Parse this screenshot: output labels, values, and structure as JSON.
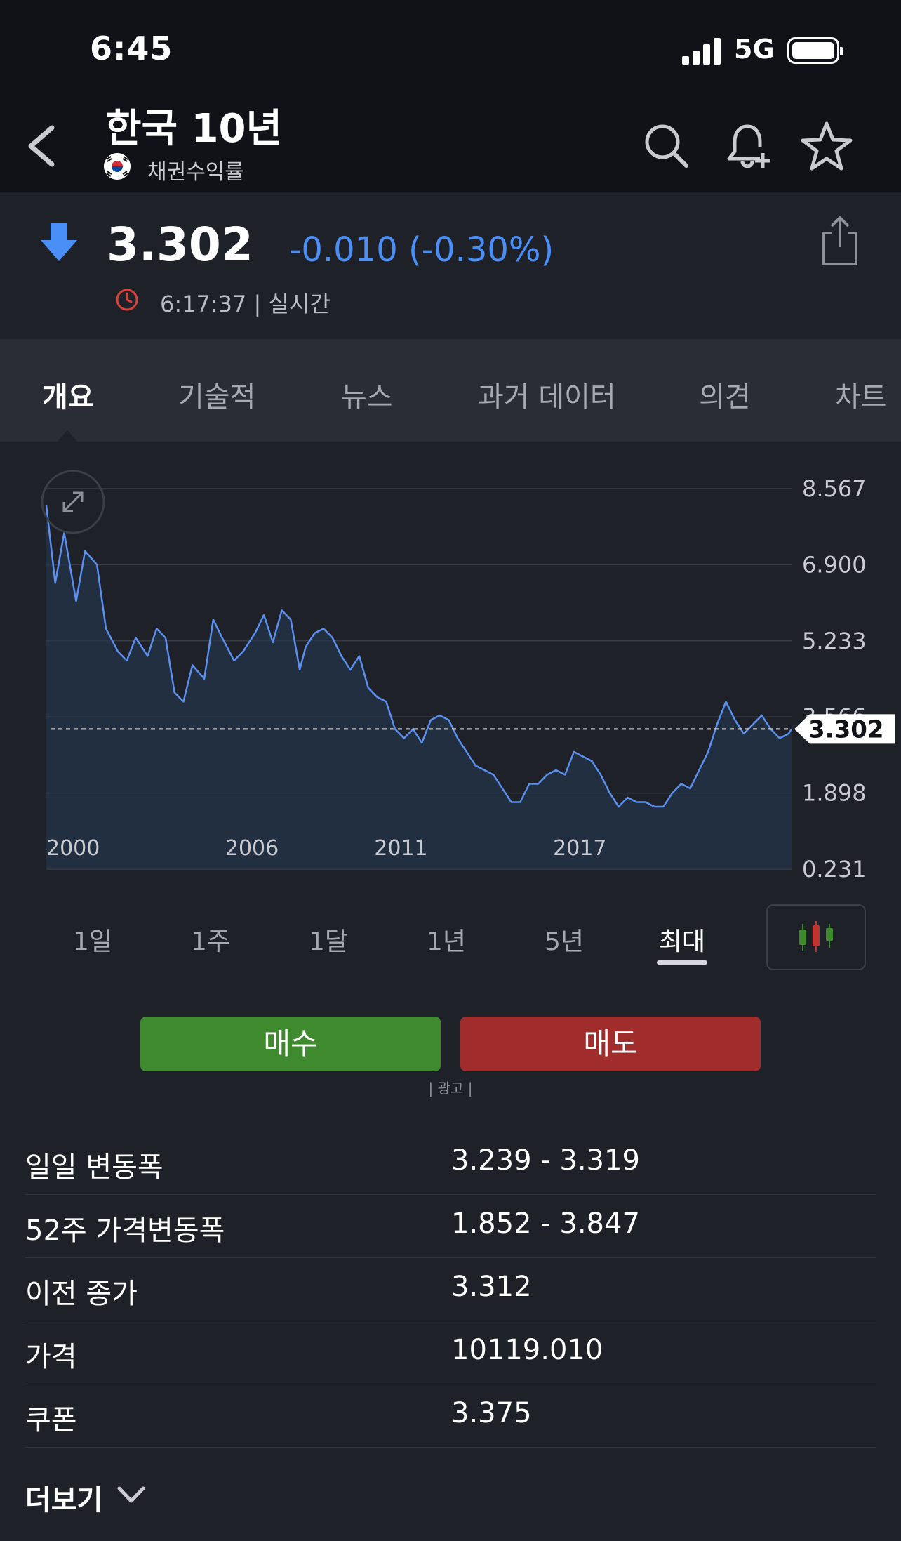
{
  "status_bar": {
    "time": "6:45",
    "network": "5G"
  },
  "header": {
    "title": "한국 10년",
    "subtitle": "채권수익률",
    "icons": [
      "back-icon",
      "search-icon",
      "bell-plus-icon",
      "star-icon"
    ]
  },
  "quote": {
    "price": "3.302",
    "change": "-0.010 (-0.30%)",
    "timestamp": "6:17:37 | 실시간",
    "direction": "down",
    "colors": {
      "down": "#4a8ef7",
      "line": "#5b8ff0",
      "clock": "#d9413a"
    }
  },
  "tabs": [
    {
      "label": "개요",
      "active": true
    },
    {
      "label": "기술적"
    },
    {
      "label": "뉴스"
    },
    {
      "label": "과거 데이터"
    },
    {
      "label": "의견"
    },
    {
      "label": "차트"
    }
  ],
  "chart_data": {
    "type": "area",
    "x_ticks": [
      "2000",
      "2006",
      "2011",
      "2017"
    ],
    "y_ticks": [
      "8.567",
      "6.900",
      "5.233",
      "3.566",
      "1.898",
      "0.231"
    ],
    "ylim": [
      0.231,
      8.567
    ],
    "current_value": "3.302",
    "grid": true,
    "series": [
      {
        "x": [
          2000.0,
          2000.3,
          2000.6,
          2001.0,
          2001.3,
          2001.7,
          2002.0,
          2002.4,
          2002.7,
          2003.0,
          2003.4,
          2003.7,
          2004.0,
          2004.3,
          2004.6,
          2004.9,
          2005.3,
          2005.6,
          2005.9,
          2006.3,
          2006.6,
          2007.0,
          2007.3,
          2007.6,
          2007.9,
          2008.2,
          2008.5,
          2008.7,
          2009.0,
          2009.3,
          2009.6,
          2009.9,
          2010.2,
          2010.5,
          2010.8,
          2011.1,
          2011.4,
          2011.7,
          2012.0,
          2012.3,
          2012.6,
          2012.9,
          2013.2,
          2013.5,
          2013.8,
          2014.1,
          2014.4,
          2014.7,
          2015.0,
          2015.3,
          2015.6,
          2015.9,
          2016.2,
          2016.5,
          2016.8,
          2017.1,
          2017.4,
          2017.7,
          2018.0,
          2018.3,
          2018.6,
          2018.9,
          2019.2,
          2019.5,
          2019.8,
          2020.1,
          2020.4,
          2020.7,
          2021.0,
          2021.3,
          2021.6,
          2021.9,
          2022.2,
          2022.5,
          2022.8,
          2023.1,
          2023.4,
          2023.7,
          2024.0,
          2024.3,
          2024.6,
          2024.9,
          2025.0
        ],
        "values": [
          8.2,
          6.5,
          7.6,
          6.1,
          7.2,
          6.9,
          5.5,
          5.0,
          4.8,
          5.3,
          4.9,
          5.5,
          5.3,
          4.1,
          3.9,
          4.7,
          4.4,
          5.7,
          5.3,
          4.8,
          5.0,
          5.4,
          5.8,
          5.2,
          5.9,
          5.7,
          4.6,
          5.1,
          5.4,
          5.5,
          5.3,
          4.9,
          4.6,
          4.9,
          4.2,
          4.0,
          3.9,
          3.3,
          3.1,
          3.3,
          3.0,
          3.5,
          3.6,
          3.5,
          3.1,
          2.8,
          2.5,
          2.4,
          2.3,
          2.0,
          1.7,
          1.7,
          2.1,
          2.1,
          2.3,
          2.4,
          2.3,
          2.8,
          2.7,
          2.6,
          2.3,
          1.9,
          1.6,
          1.8,
          1.7,
          1.7,
          1.6,
          1.6,
          1.9,
          2.1,
          2.0,
          2.4,
          2.8,
          3.4,
          3.9,
          3.5,
          3.2,
          3.4,
          3.6,
          3.3,
          3.1,
          3.2,
          3.3
        ]
      }
    ]
  },
  "ranges": [
    {
      "label": "1일"
    },
    {
      "label": "1주"
    },
    {
      "label": "1달"
    },
    {
      "label": "1년"
    },
    {
      "label": "5년"
    },
    {
      "label": "최대",
      "active": true
    }
  ],
  "actions": {
    "buy": "매수",
    "sell": "매도",
    "ad": "| 광고 |"
  },
  "stats": [
    {
      "label": "일일 변동폭",
      "value": "3.239 - 3.319"
    },
    {
      "label": "52주 가격변동폭",
      "value": "1.852 - 3.847"
    },
    {
      "label": "이전 종가",
      "value": "3.312"
    },
    {
      "label": "가격",
      "value": "10119.010"
    },
    {
      "label": "쿠폰",
      "value": "3.375"
    }
  ],
  "more": "더보기"
}
